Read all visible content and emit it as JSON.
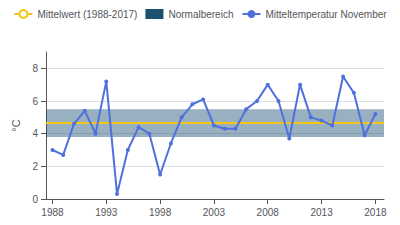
{
  "chart_data": {
    "type": "line",
    "ylabel": "°C",
    "x": [
      1988,
      1989,
      1990,
      1991,
      1992,
      1993,
      1994,
      1995,
      1996,
      1997,
      1998,
      1999,
      2000,
      2001,
      2002,
      2003,
      2004,
      2005,
      2006,
      2007,
      2008,
      2009,
      2010,
      2011,
      2012,
      2013,
      2014,
      2015,
      2016,
      2017,
      2018
    ],
    "series": [
      {
        "name": "Mittelwert (1988-2017)",
        "type": "hline",
        "color": "#f5c518",
        "value": 4.65
      },
      {
        "name": "Normalbereich",
        "type": "band",
        "color": "#1a5070",
        "range": [
          3.8,
          5.5
        ]
      },
      {
        "name": "Mitteltemperatur November",
        "type": "line",
        "marker": "circle",
        "values": [
          3.0,
          2.7,
          4.6,
          5.4,
          4.0,
          7.2,
          0.3,
          3.0,
          4.4,
          4.0,
          1.5,
          3.4,
          5.0,
          5.8,
          6.1,
          4.5,
          4.3,
          4.3,
          5.5,
          6.0,
          7.0,
          6.0,
          3.7,
          7.0,
          5.0,
          4.8,
          4.5,
          7.5,
          6.5,
          3.9,
          5.2
        ]
      }
    ],
    "xlim": [
      1987.4,
      2018.8
    ],
    "xticks": [
      1988,
      1993,
      1998,
      2003,
      2008,
      2013,
      2018
    ],
    "ylim": [
      0,
      9
    ],
    "yticks": [
      0,
      2,
      4,
      6,
      8
    ],
    "grid": true,
    "legend": "top"
  }
}
